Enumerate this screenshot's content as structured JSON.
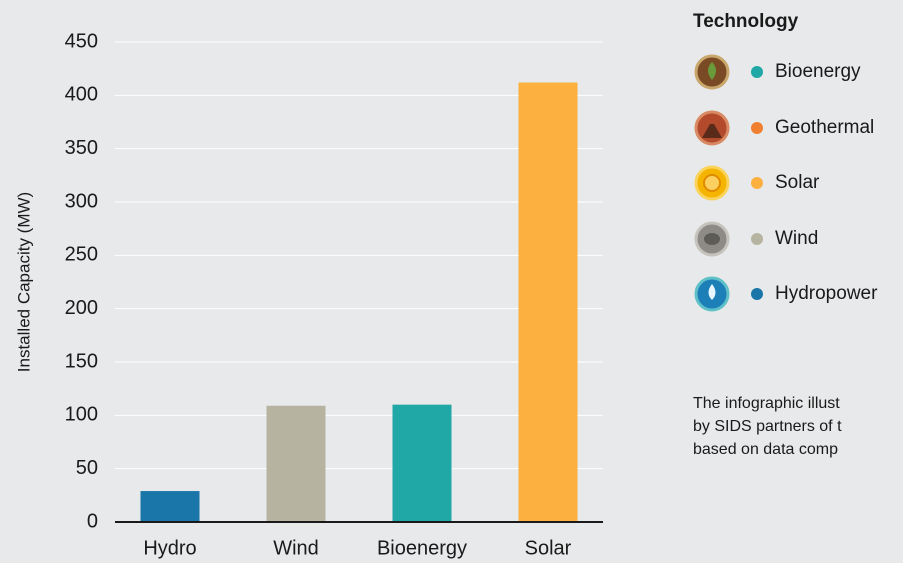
{
  "chart_data": {
    "type": "bar",
    "y_label": "Installed Capacity (MW)",
    "categories": [
      "Hydro",
      "Wind",
      "Bioenergy",
      "Solar"
    ],
    "values": [
      29,
      109,
      110,
      412
    ],
    "colors": [
      "#1a75a8",
      "#b6b4a1",
      "#1fa8a5",
      "#fbb040"
    ],
    "ylim": [
      0,
      450
    ],
    "yticks": [
      0,
      50,
      100,
      150,
      200,
      250,
      300,
      350,
      400,
      450
    ],
    "grid": true,
    "legend_title": "Technology",
    "legend": [
      {
        "name": "Bioenergy",
        "color": "#1fa8a5"
      },
      {
        "name": "Geothermal",
        "color": "#f07f2f"
      },
      {
        "name": "Solar",
        "color": "#fbb040"
      },
      {
        "name": "Wind",
        "color": "#b6b4a1"
      },
      {
        "name": "Hydropower",
        "color": "#1a75a8"
      }
    ],
    "note_lines": [
      "The infographic illust",
      "by SIDS partners of t",
      "based on data comp"
    ]
  }
}
